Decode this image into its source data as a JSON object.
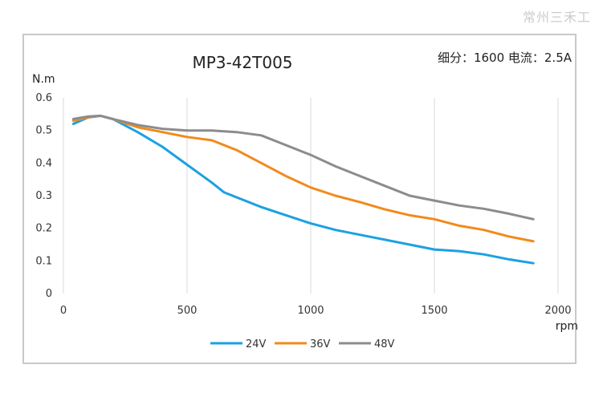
{
  "watermark": "常州三禾工",
  "chart_data": {
    "type": "line",
    "title": "MP3-42T005",
    "subtitle": "细分：1600 电流：2.5A",
    "xlabel": "rpm",
    "ylabel": "N.m",
    "xlim": [
      0,
      2000
    ],
    "ylim": [
      0,
      0.6
    ],
    "xticks": [
      0,
      500,
      1000,
      1500,
      2000
    ],
    "yticks": [
      0,
      0.1,
      0.2,
      0.3,
      0.4,
      0.5,
      0.6
    ],
    "ytick_labels": [
      "0",
      "0.1",
      "0.2",
      "0.3",
      "0.4",
      "0.5",
      "0.6"
    ],
    "grid": "vertical",
    "legend": "bottom-center",
    "series": [
      {
        "name": "24V",
        "color": "#1ba1e2",
        "x": [
          40,
          100,
          150,
          200,
          300,
          400,
          500,
          600,
          650,
          700,
          800,
          900,
          1000,
          1100,
          1200,
          1300,
          1400,
          1500,
          1600,
          1700,
          1800,
          1900
        ],
        "y": [
          0.52,
          0.54,
          0.545,
          0.535,
          0.495,
          0.45,
          0.395,
          0.34,
          0.31,
          0.295,
          0.265,
          0.24,
          0.215,
          0.195,
          0.18,
          0.165,
          0.15,
          0.135,
          0.13,
          0.12,
          0.105,
          0.093
        ]
      },
      {
        "name": "36V",
        "color": "#f28a1b",
        "x": [
          40,
          100,
          150,
          200,
          300,
          400,
          500,
          600,
          650,
          700,
          800,
          900,
          1000,
          1100,
          1200,
          1300,
          1400,
          1500,
          1600,
          1700,
          1800,
          1900
        ],
        "y": [
          0.53,
          0.54,
          0.545,
          0.535,
          0.51,
          0.495,
          0.48,
          0.47,
          0.455,
          0.44,
          0.4,
          0.36,
          0.325,
          0.3,
          0.28,
          0.258,
          0.24,
          0.228,
          0.208,
          0.195,
          0.175,
          0.16
        ]
      },
      {
        "name": "48V",
        "color": "#8c8c8c",
        "x": [
          40,
          100,
          150,
          200,
          300,
          400,
          500,
          600,
          700,
          800,
          900,
          1000,
          1100,
          1200,
          1300,
          1400,
          1500,
          1600,
          1700,
          1800,
          1900
        ],
        "y": [
          0.535,
          0.543,
          0.545,
          0.535,
          0.517,
          0.505,
          0.5,
          0.5,
          0.495,
          0.485,
          0.455,
          0.425,
          0.39,
          0.36,
          0.33,
          0.3,
          0.285,
          0.27,
          0.26,
          0.245,
          0.228
        ]
      }
    ]
  }
}
